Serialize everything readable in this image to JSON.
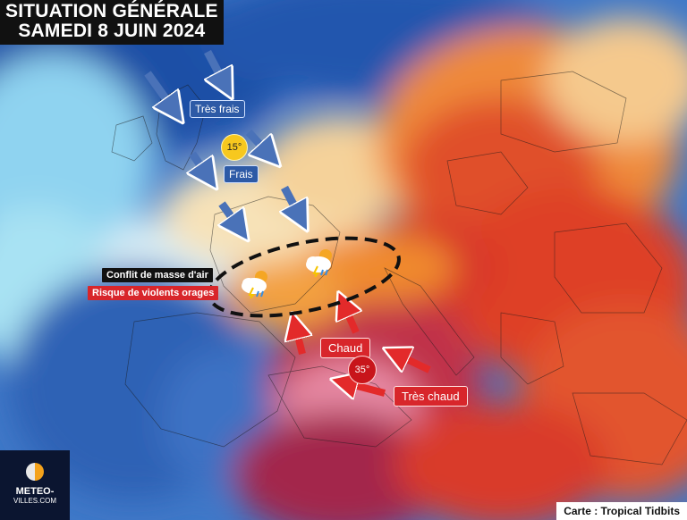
{
  "title": {
    "line1": "SITUATION GÉNÉRALE",
    "line2": "SAMEDI 8 JUIN 2024"
  },
  "labels": {
    "tres_frais": "Très frais",
    "frais": "Frais",
    "conflit": "Conflit de masse d'air",
    "risque": "Risque de violents orages",
    "chaud": "Chaud",
    "tres_chaud": "Très chaud"
  },
  "temperatures": {
    "cool": "15°",
    "hot": "35°"
  },
  "icons": [
    "cool-arrow-icon",
    "hot-arrow-icon",
    "thunderstorm-icon",
    "air-mass-conflict-zone"
  ],
  "logo": {
    "name": "METEO-",
    "sub": "VILLES.COM"
  },
  "credit": "Carte : Tropical Tidbits",
  "colors": {
    "cool_arrow": "#4a72b8",
    "hot_arrow": "#e32a2a",
    "cool_tag": "#2d5aa6",
    "hot_tag": "#d8262b"
  }
}
